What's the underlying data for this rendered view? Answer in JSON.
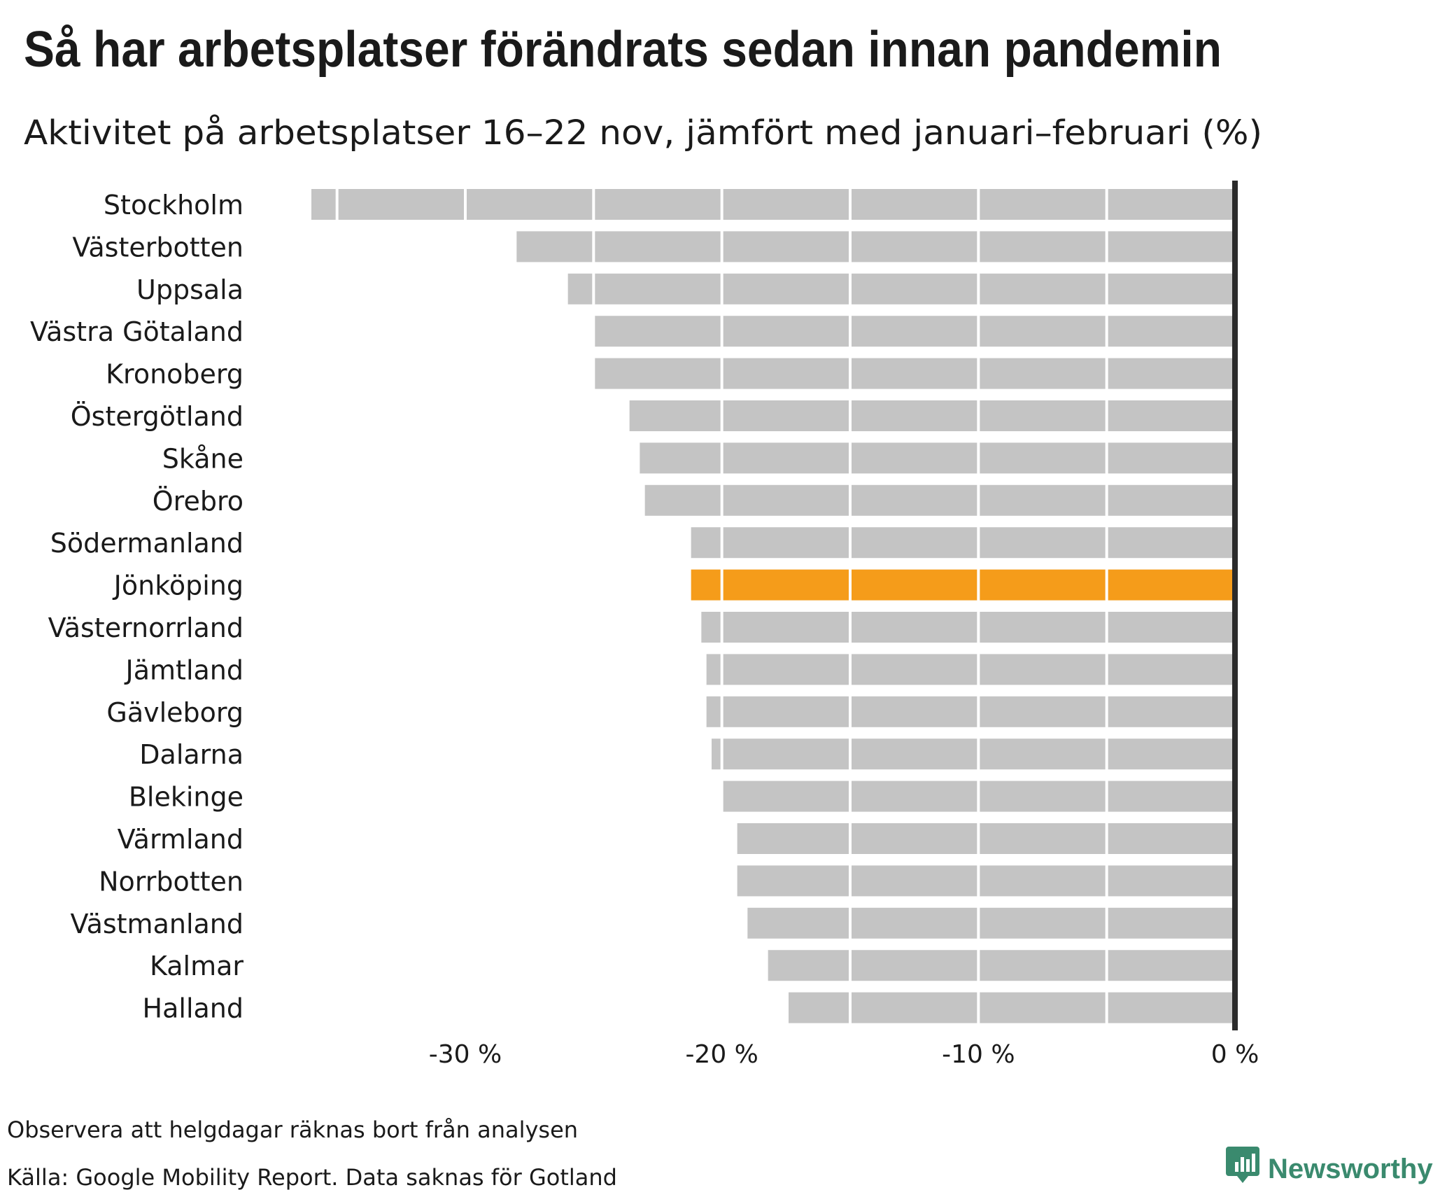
{
  "chart_data": {
    "type": "bar",
    "orientation": "horizontal",
    "title": "Så har arbetsplatser förändrats sedan innan pandemin",
    "subtitle": "Aktivitet på arbetsplatser 16–22 nov, jämfört med januari–februari (%)",
    "categories": [
      "Stockholm",
      "Västerbotten",
      "Uppsala",
      "Västra Götaland",
      "Kronoberg",
      "Östergötland",
      "Skåne",
      "Örebro",
      "Södermanland",
      "Jönköping",
      "Västernorrland",
      "Jämtland",
      "Gävleborg",
      "Dalarna",
      "Blekinge",
      "Värmland",
      "Norrbotten",
      "Västmanland",
      "Kalmar",
      "Halland"
    ],
    "values": [
      -36,
      -28,
      -26,
      -25,
      -25,
      -23.6,
      -23.2,
      -23,
      -21.2,
      -21.2,
      -20.8,
      -20.6,
      -20.6,
      -20.4,
      -20,
      -19.4,
      -19.4,
      -19,
      -18.2,
      -17.4
    ],
    "highlight": "Jönköping",
    "xlim": [
      -36,
      0
    ],
    "xticks": [
      -30,
      -20,
      -10,
      0
    ],
    "xtick_labels": [
      "-30 %",
      "-20 %",
      "-10 %",
      "0 %"
    ],
    "grid": true,
    "colors": {
      "bar": "#c4c4c4",
      "highlight": "#f59c1a",
      "baseline": "#2b2b2b",
      "grid": "#ffffff",
      "text": "#1a1a1a"
    }
  },
  "footer": {
    "note": "Observera att helgdagar räknas bort från analysen",
    "source": "Källa: Google Mobility Report. Data saknas för Gotland"
  },
  "brand": {
    "name": "Newsworthy",
    "color": "#3a8a6e",
    "icon": "bar-chart-bubble-icon"
  }
}
